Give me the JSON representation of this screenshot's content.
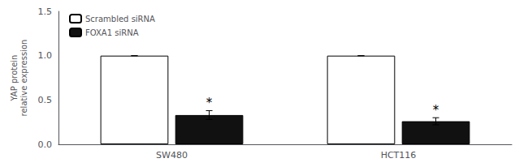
{
  "chart_data": {
    "type": "bar",
    "categories": [
      "SW480",
      "HCT116"
    ],
    "series": [
      {
        "name": "Scrambled siRNA",
        "color": "#ffffff",
        "values": [
          1.0,
          1.0
        ],
        "errors": [
          0.0,
          0.0
        ]
      },
      {
        "name": "FOXA1 siRNA",
        "color": "#111111",
        "values": [
          0.33,
          0.26
        ],
        "errors": [
          0.05,
          0.04
        ]
      }
    ],
    "ylabel": "YAP protein\nrelative expression",
    "ylim": [
      0.0,
      1.5
    ],
    "yticks": [
      {
        "value": 0.0,
        "label": "0.0"
      },
      0.5,
      {
        "value": 1.0,
        "label": "1.0"
      },
      1.5
    ],
    "legend": "upper left",
    "annotations": [
      {
        "text": "*",
        "category": "SW480",
        "series": "FOXA1 siRNA"
      },
      {
        "text": "*",
        "category": "HCT116",
        "series": "FOXA1 siRNA"
      }
    ]
  }
}
